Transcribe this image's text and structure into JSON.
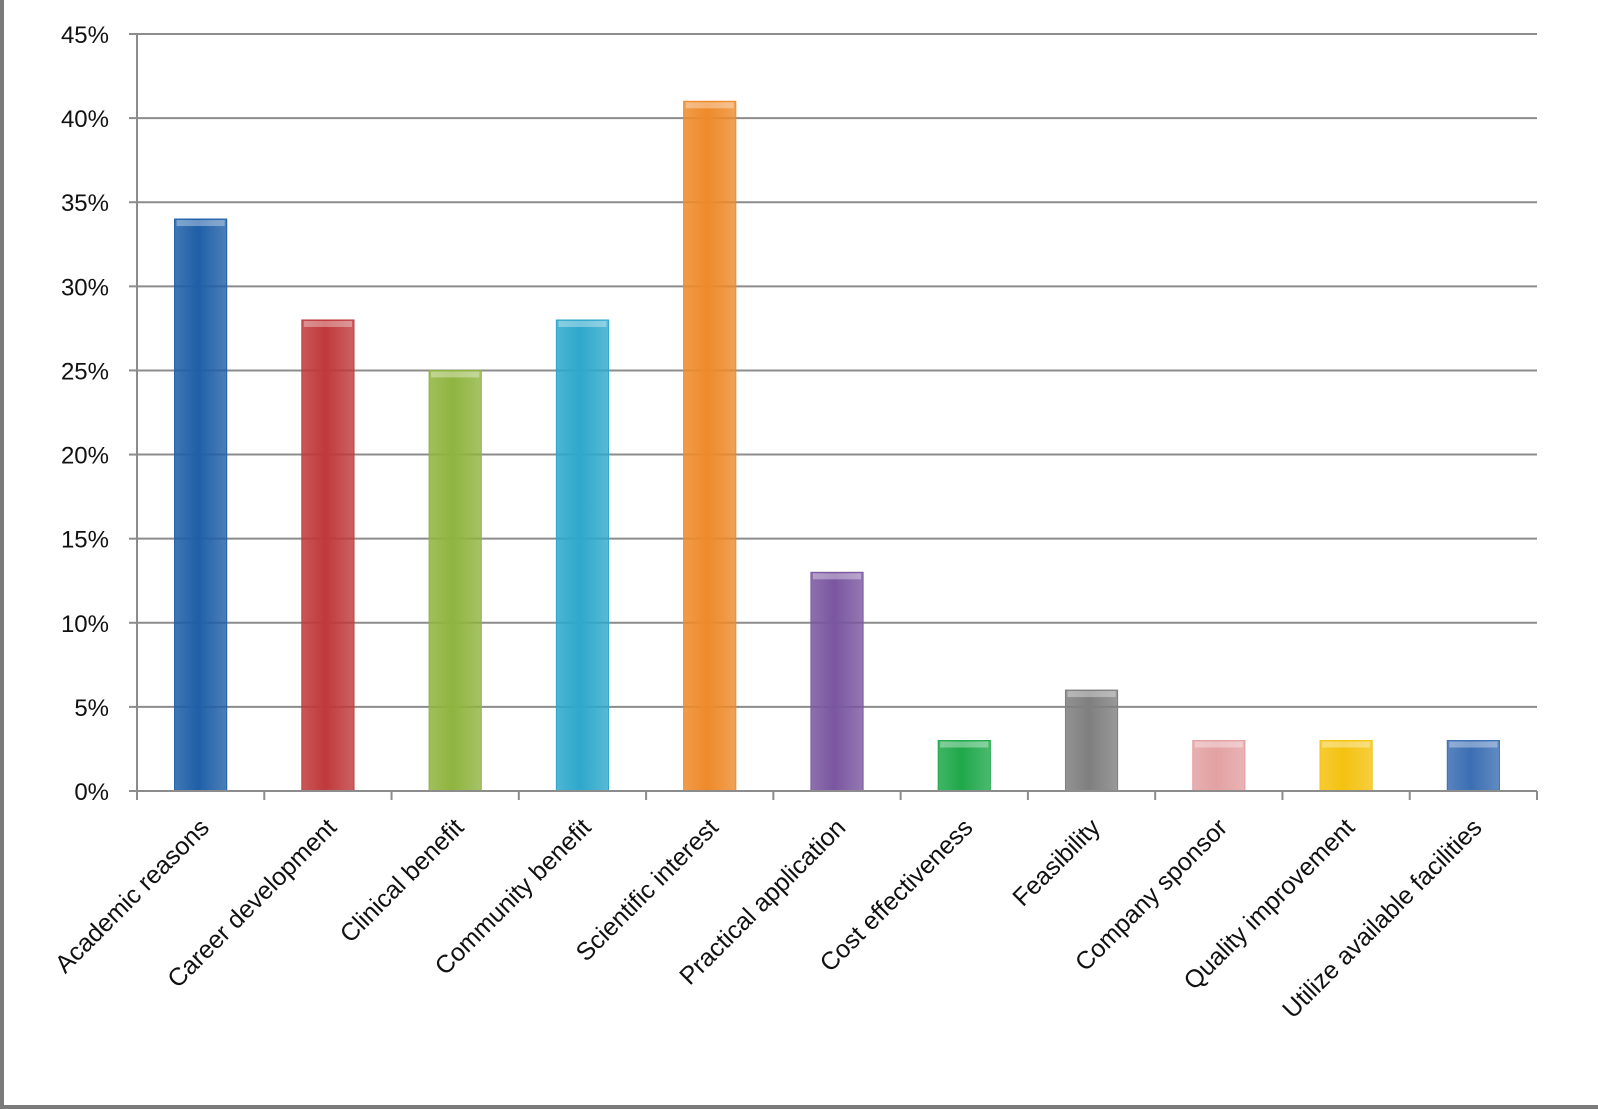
{
  "chart_data": {
    "type": "bar",
    "title": "",
    "xlabel": "",
    "ylabel": "",
    "ylim": [
      0,
      45
    ],
    "y_ticks": [
      0,
      5,
      10,
      15,
      20,
      25,
      30,
      35,
      40,
      45
    ],
    "y_tick_format": "{v}%",
    "grid": "horizontal",
    "categories": [
      "Academic reasons",
      "Career development",
      "Clinical benefit",
      "Community benefit",
      "Scientific interest",
      "Practical application",
      "Cost effectiveness",
      "Feasibility",
      "Company sponsor",
      "Quality improvement",
      "Utilize available facilities"
    ],
    "values": [
      34,
      28,
      25,
      28,
      41,
      13,
      3,
      6,
      3,
      3,
      3
    ],
    "colors": [
      "#1f5fa8",
      "#c0393b",
      "#8fb43f",
      "#2ea8cc",
      "#ee8a2a",
      "#7a56a0",
      "#1fa84a",
      "#7f7f7f",
      "#e3a1a3",
      "#f4c20f",
      "#3b6eb3"
    ]
  }
}
